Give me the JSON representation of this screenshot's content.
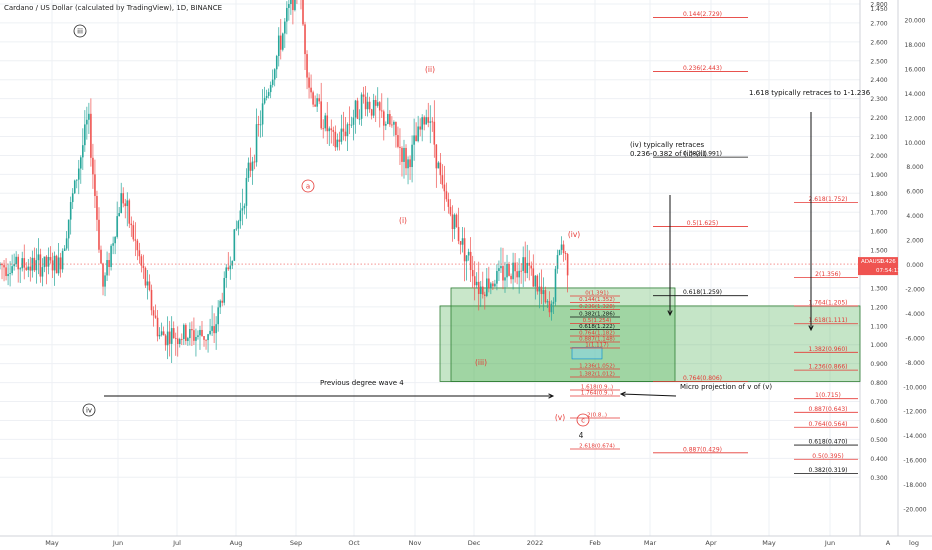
{
  "header": {
    "title": "Cardano / US Dollar (calculated by TradingView), 1D, BINANCE"
  },
  "price_tag": {
    "symbol": "ADAUSD",
    "price": "1.426",
    "countdown": "07:54:13"
  },
  "corner_labels": {
    "axis_mode_a": "A",
    "axis_mode_log": "log"
  },
  "colors": {
    "up": "#26a69a",
    "down": "#ef5350",
    "fib_red": "#e53935",
    "fib_black": "#111111",
    "zone_fill": "#4caf50",
    "zone_stroke": "#2e7d32",
    "annotation": "#111111",
    "wave_red": "#e53935"
  },
  "chart_data": {
    "type": "candlestick",
    "title": "Cardano / US Dollar (calculated by TradingView), 1D, BINANCE",
    "x_ticks": [
      "May",
      "Jun",
      "Jul",
      "Aug",
      "Sep",
      "Oct",
      "Nov",
      "Dec",
      "2022",
      "Feb",
      "Mar",
      "Apr",
      "May",
      "Jun"
    ],
    "y_ticks_price": [
      "2.800",
      "2.700",
      "2.600",
      "2.500",
      "2.400",
      "2.300",
      "2.200",
      "2.100",
      "2.000",
      "1.900",
      "1.800",
      "1.700",
      "1.600",
      "1.500",
      "1.400",
      "1.300",
      "1.200",
      "1.100",
      "1.000",
      "0.900",
      "0.800",
      "0.700",
      "0.600",
      "0.500",
      "0.400",
      "0.300"
    ],
    "y_top_label": "1.450",
    "y_ticks_percent": [
      "20.000",
      "18.000",
      "16.000",
      "14.000",
      "12.000",
      "10.000",
      "8.000",
      "6.000",
      "4.000",
      "2.000",
      "0.000",
      "-2.000",
      "-4.000",
      "-6.000",
      "-8.000",
      "-10.000",
      "-12.000",
      "-14.000",
      "-16.000",
      "-18.000",
      "-20.000"
    ],
    "price_anchor": [
      {
        "x": "2021-05-05",
        "y": 1.45
      },
      {
        "x": "2021-05-18",
        "y": 2.2
      },
      {
        "x": "2021-05-25",
        "y": 1.3
      },
      {
        "x": "2021-06-03",
        "y": 1.8
      },
      {
        "x": "2021-06-22",
        "y": 1.05
      },
      {
        "x": "2021-07-20",
        "y": 1.05
      },
      {
        "x": "2021-08-15",
        "y": 2.25
      },
      {
        "x": "2021-09-02",
        "y": 2.95
      },
      {
        "x": "2021-09-08",
        "y": 2.35
      },
      {
        "x": "2021-09-21",
        "y": 2.05
      },
      {
        "x": "2021-10-06",
        "y": 2.3
      },
      {
        "x": "2021-10-20",
        "y": 2.15
      },
      {
        "x": "2021-10-28",
        "y": 1.95
      },
      {
        "x": "2021-11-08",
        "y": 2.25
      },
      {
        "x": "2021-11-15",
        "y": 1.8
      },
      {
        "x": "2021-12-04",
        "y": 1.3
      },
      {
        "x": "2021-12-27",
        "y": 1.45
      },
      {
        "x": "2022-01-09",
        "y": 1.15
      },
      {
        "x": "2022-01-14",
        "y": 1.55
      },
      {
        "x": "2022-01-18",
        "y": 1.42
      }
    ],
    "fib_levels": [
      {
        "label": "0.144(2.729)",
        "color": "red"
      },
      {
        "label": "0.236(2.443)",
        "color": "red"
      },
      {
        "label": "0.382(1.991)",
        "color": "black"
      },
      {
        "label": "0.5(1.625)",
        "color": "red"
      },
      {
        "label": "0.618(1.259)",
        "color": "black"
      },
      {
        "label": "0.764(0.806)",
        "color": "red"
      },
      {
        "label": "0.887(0.429)",
        "color": "red"
      },
      {
        "label": "2.618(1.752)",
        "color": "red"
      },
      {
        "label": "2(1.356)",
        "color": "red"
      },
      {
        "label": "1.764(1.205)",
        "color": "red"
      },
      {
        "label": "1.618(1.111)",
        "color": "red"
      },
      {
        "label": "1.382(0.960)",
        "color": "red"
      },
      {
        "label": "1.236(0.866)",
        "color": "red"
      },
      {
        "label": "1(0.715)",
        "color": "red"
      },
      {
        "label": "0.887(0.643)",
        "color": "red"
      },
      {
        "label": "0.764(0.564)",
        "color": "red"
      },
      {
        "label": "0.618(0.470)",
        "color": "black"
      },
      {
        "label": "0.5(0.395)",
        "color": "red"
      },
      {
        "label": "0.382(0.319)",
        "color": "black"
      },
      {
        "label": "0(1.391)",
        "color": "red"
      },
      {
        "label": "0.144(1.352)",
        "color": "red"
      },
      {
        "label": "0.236(1.328)",
        "color": "red"
      },
      {
        "label": "0.382(1.286)",
        "color": "black"
      },
      {
        "label": "0.5(1.254)",
        "color": "red"
      },
      {
        "label": "0.618(1.222)",
        "color": "black"
      },
      {
        "label": "0.764(1.182)",
        "color": "red"
      },
      {
        "label": "0.887(1.148)",
        "color": "red"
      },
      {
        "label": "1(1.117)",
        "color": "red"
      },
      {
        "label": "1.236(1.052)",
        "color": "red"
      },
      {
        "label": "1.382(1.012)",
        "color": "red"
      },
      {
        "label": "1.618(0.9..)",
        "color": "red"
      },
      {
        "label": "1.764(0.9..)",
        "color": "red"
      },
      {
        "label": "2(0.8..)",
        "color": "red"
      },
      {
        "label": "2.618(0.674)",
        "color": "red"
      }
    ],
    "wave_labels": [
      {
        "text": "iii",
        "style": "circle-black"
      },
      {
        "text": "iv",
        "style": "circle-black"
      },
      {
        "text": "(ii)",
        "style": "red"
      },
      {
        "text": "a",
        "style": "circle-red"
      },
      {
        "text": "(i)",
        "style": "red"
      },
      {
        "text": "(iii)",
        "style": "red"
      },
      {
        "text": "(iv)",
        "style": "red"
      },
      {
        "text": "(v)",
        "style": "red"
      },
      {
        "text": "4",
        "style": "black"
      },
      {
        "text": "c",
        "style": "circle-red"
      }
    ],
    "annotations": [
      "(iv) typically retraces",
      "0.236-0.382 of (ii)-(iii)",
      "1.618 typically retraces to 1-1.236",
      "Previous degree wave 4",
      "Micro projection of v of (v)"
    ]
  }
}
